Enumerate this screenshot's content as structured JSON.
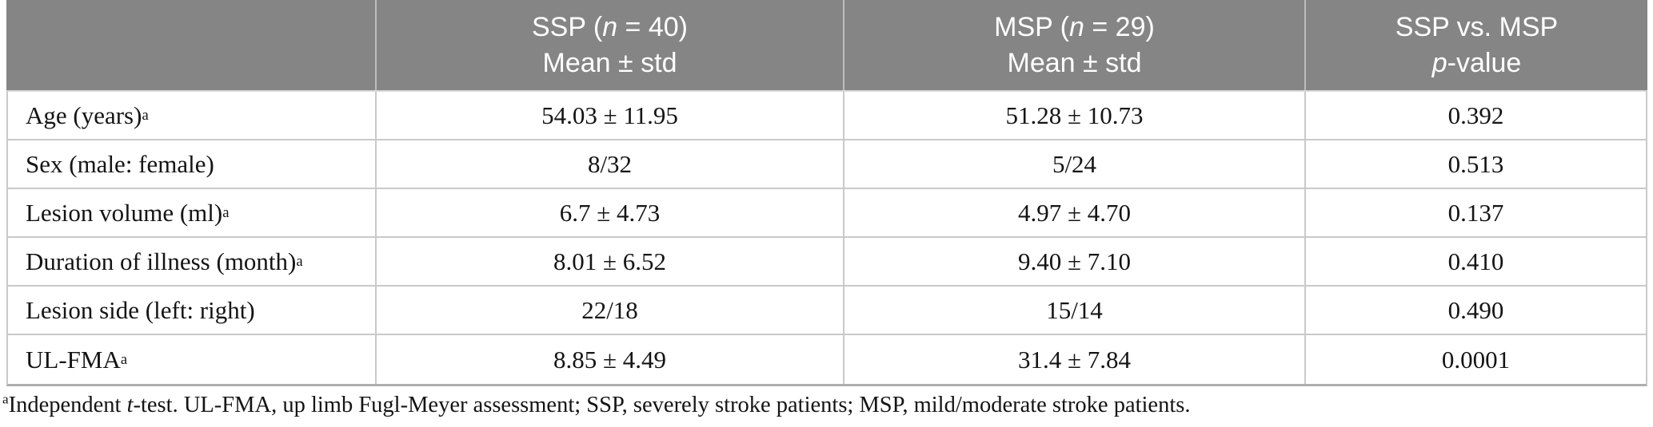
{
  "colors": {
    "header_bg": "#858585",
    "header_text": "#ffffff",
    "body_text": "#141414",
    "divider": "#c9c9c9"
  },
  "table": {
    "header": {
      "stub": "",
      "ssp": {
        "prefix": "SSP (",
        "n": "n",
        "suffix": " = 40)",
        "line2": "Mean ± std"
      },
      "msp": {
        "prefix": "MSP (",
        "n": "n",
        "suffix": " = 29)",
        "line2": "Mean ± std"
      },
      "pcol": {
        "line1": "SSP vs. MSP",
        "p": "p",
        "suffix": "-value"
      }
    },
    "rows": [
      {
        "label": "Age (years)",
        "sup": "a",
        "ssp": "54.03 ± 11.95",
        "msp": "51.28 ± 10.73",
        "p": "0.392"
      },
      {
        "label": "Sex (male: female)",
        "sup": "",
        "ssp": "8/32",
        "msp": "5/24",
        "p": "0.513"
      },
      {
        "label": "Lesion volume (ml)",
        "sup": "a",
        "ssp": "6.7 ± 4.73",
        "msp": "4.97 ± 4.70",
        "p": "0.137"
      },
      {
        "label": "Duration of illness (month)",
        "sup": "a",
        "ssp": "8.01 ± 6.52",
        "msp": "9.40 ± 7.10",
        "p": "0.410"
      },
      {
        "label": "Lesion side (left: right)",
        "sup": "",
        "ssp": "22/18",
        "msp": "15/14",
        "p": "0.490"
      },
      {
        "label": "UL-FMA",
        "sup": "a",
        "ssp": "8.85 ± 4.49",
        "msp": "31.4 ± 7.84",
        "p": "0.0001"
      }
    ]
  },
  "footnote": {
    "sup": "a",
    "part1": "Independent ",
    "t": "t",
    "part2": "-test. UL-FMA, up limb Fugl-Meyer assessment; SSP, severely stroke patients; MSP, mild/moderate stroke patients."
  }
}
